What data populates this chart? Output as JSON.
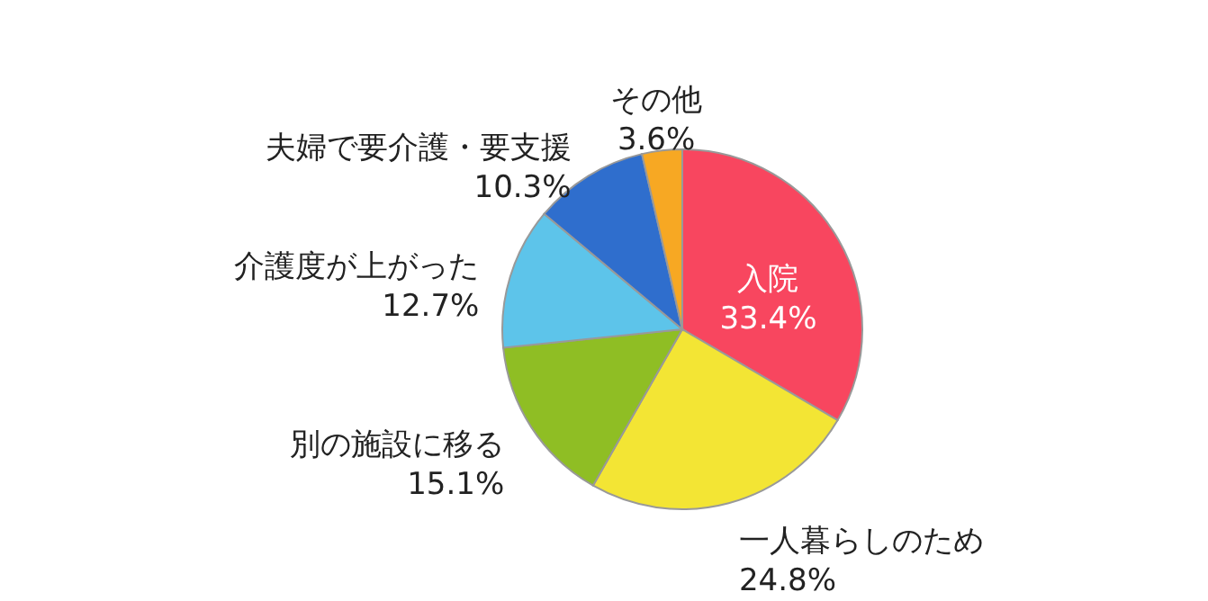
{
  "chart_data": {
    "type": "pie",
    "categories": [
      "入院",
      "一人暮らしのため",
      "別の施設に移る",
      "介護度が上がった",
      "夫婦で要介護・要支援",
      "その他"
    ],
    "values": [
      33.4,
      24.8,
      15.1,
      12.7,
      10.3,
      3.6
    ],
    "value_labels": [
      "33.4%",
      "24.8%",
      "15.1%",
      "12.7%",
      "10.3%",
      "3.6%"
    ],
    "colors": [
      "#f8465f",
      "#f3e534",
      "#8fbe24",
      "#5dc4ea",
      "#2f6ecd",
      "#f7a823"
    ],
    "legend": false
  }
}
